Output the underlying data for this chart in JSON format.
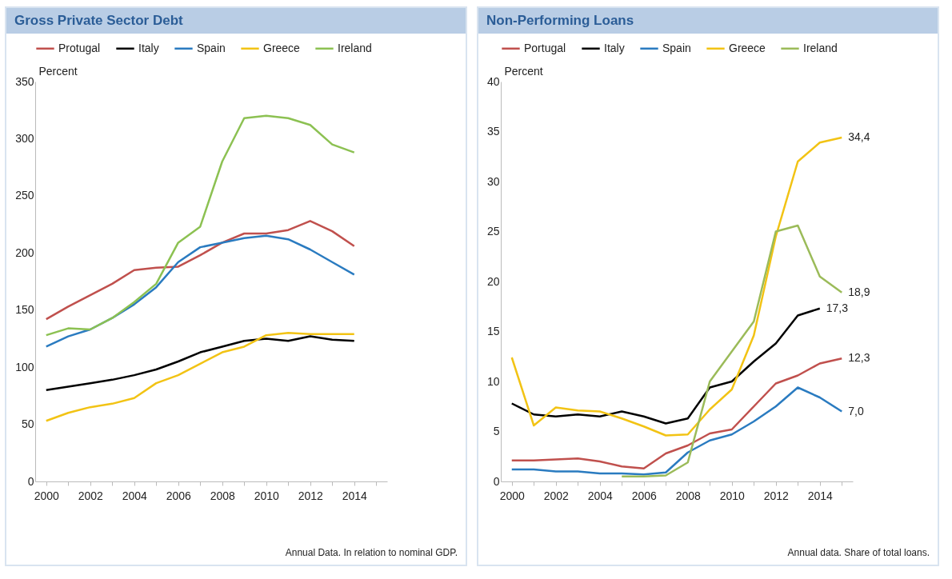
{
  "chart_data": [
    {
      "type": "line",
      "title": "Gross Private Sector Debt",
      "ylabel": "Percent",
      "legend": "top",
      "grid": false,
      "x": [
        2000,
        2001,
        2002,
        2003,
        2004,
        2005,
        2006,
        2007,
        2008,
        2009,
        2010,
        2011,
        2012,
        2013,
        2014
      ],
      "xlim": [
        1999.5,
        2015.5
      ],
      "xticks": [
        2000,
        {
          "value": 2001,
          "label": null
        },
        2002,
        {
          "value": 2003,
          "label": null
        },
        2004,
        {
          "value": 2005,
          "label": null
        },
        2006,
        {
          "value": 2007,
          "label": null
        },
        2008,
        {
          "value": 2009,
          "label": null
        },
        2010,
        {
          "value": 2011,
          "label": null
        },
        2012,
        {
          "value": 2013,
          "label": null
        },
        2014,
        {
          "value": 2015,
          "label": null
        }
      ],
      "ylim": [
        0,
        350
      ],
      "yticks": [
        0,
        50,
        100,
        150,
        200,
        250,
        300,
        350
      ],
      "series": [
        {
          "name": "Protugal",
          "color": "#c0504d",
          "values": [
            142,
            153,
            163,
            173,
            185,
            187,
            188,
            198,
            209,
            217,
            217,
            220,
            228,
            219,
            206
          ]
        },
        {
          "name": "Italy",
          "color": "#000000",
          "values": [
            80,
            83,
            86,
            89,
            93,
            98,
            105,
            113,
            118,
            123,
            125,
            123,
            127,
            124,
            123
          ]
        },
        {
          "name": "Spain",
          "color": "#2a7bc0",
          "values": [
            118,
            127,
            133,
            143,
            155,
            170,
            192,
            205,
            209,
            213,
            215,
            212,
            203,
            192,
            181
          ]
        },
        {
          "name": "Greece",
          "color": "#f2c314",
          "values": [
            53,
            60,
            65,
            68,
            73,
            86,
            93,
            103,
            113,
            118,
            128,
            130,
            129,
            129,
            129
          ]
        },
        {
          "name": "Ireland",
          "color": "#8cc152",
          "values": [
            128,
            134,
            133,
            143,
            157,
            173,
            209,
            223,
            280,
            318,
            320,
            318,
            312,
            295,
            288
          ]
        }
      ],
      "annotations": [
        "Annual Data. In relation to nominal GDP."
      ]
    },
    {
      "type": "line",
      "title": "Non-Performing Loans",
      "ylabel": "Percent",
      "legend": "top",
      "grid": false,
      "x": [
        2000,
        2001,
        2002,
        2003,
        2004,
        2005,
        2006,
        2007,
        2008,
        2009,
        2010,
        2011,
        2012,
        2013,
        2014,
        2015
      ],
      "xlim": [
        1999.5,
        2015.5
      ],
      "xticks": [
        2000,
        {
          "value": 2001,
          "label": null
        },
        2002,
        {
          "value": 2003,
          "label": null
        },
        2004,
        {
          "value": 2005,
          "label": null
        },
        2006,
        {
          "value": 2007,
          "label": null
        },
        2008,
        {
          "value": 2009,
          "label": null
        },
        2010,
        {
          "value": 2011,
          "label": null
        },
        2012,
        {
          "value": 2013,
          "label": null
        },
        2014,
        {
          "value": 2015,
          "label": null
        }
      ],
      "ylim": [
        0,
        40
      ],
      "yticks": [
        0,
        5,
        10,
        15,
        20,
        25,
        30,
        35,
        40
      ],
      "series": [
        {
          "name": "Portugal",
          "color": "#c0504d",
          "values": [
            2.1,
            2.1,
            2.2,
            2.3,
            2.0,
            1.5,
            1.3,
            2.8,
            3.6,
            4.8,
            5.2,
            7.5,
            9.8,
            10.6,
            11.8,
            12.3
          ],
          "value_labels": [
            null,
            null,
            null,
            null,
            null,
            null,
            null,
            null,
            null,
            null,
            null,
            null,
            null,
            null,
            null,
            "12,3"
          ]
        },
        {
          "name": "Italy",
          "color": "#000000",
          "values": [
            7.8,
            6.7,
            6.5,
            6.7,
            6.5,
            7.0,
            6.5,
            5.8,
            6.3,
            9.4,
            10.0,
            12.0,
            13.8,
            16.6,
            17.3,
            null
          ],
          "value_labels": [
            null,
            null,
            null,
            null,
            null,
            null,
            null,
            null,
            null,
            null,
            null,
            null,
            null,
            null,
            "17,3",
            null
          ]
        },
        {
          "name": "Spain",
          "color": "#2a7bc0",
          "values": [
            1.2,
            1.2,
            1.0,
            1.0,
            0.8,
            0.8,
            0.7,
            0.9,
            2.9,
            4.1,
            4.7,
            6.0,
            7.5,
            9.4,
            8.4,
            7.0
          ],
          "value_labels": [
            null,
            null,
            null,
            null,
            null,
            null,
            null,
            null,
            null,
            null,
            null,
            null,
            null,
            null,
            null,
            "7,0"
          ]
        },
        {
          "name": "Greece",
          "color": "#f2c314",
          "values": [
            12.4,
            5.6,
            7.4,
            7.1,
            7.0,
            6.3,
            5.5,
            4.6,
            4.7,
            7.2,
            9.2,
            14.6,
            24.5,
            32.0,
            33.9,
            34.4
          ],
          "value_labels": [
            null,
            null,
            null,
            null,
            null,
            null,
            null,
            null,
            null,
            null,
            null,
            null,
            null,
            null,
            null,
            "34,4"
          ]
        },
        {
          "name": "Ireland",
          "color": "#9bbb59",
          "values": [
            null,
            null,
            null,
            null,
            null,
            0.5,
            0.5,
            0.6,
            1.9,
            10.0,
            13.0,
            16.0,
            25.0,
            25.6,
            20.5,
            18.9
          ],
          "value_labels": [
            null,
            null,
            null,
            null,
            null,
            null,
            null,
            null,
            null,
            null,
            null,
            null,
            null,
            null,
            null,
            "18,9"
          ]
        }
      ],
      "annotations": [
        "Annual data. Share of total loans."
      ]
    }
  ]
}
